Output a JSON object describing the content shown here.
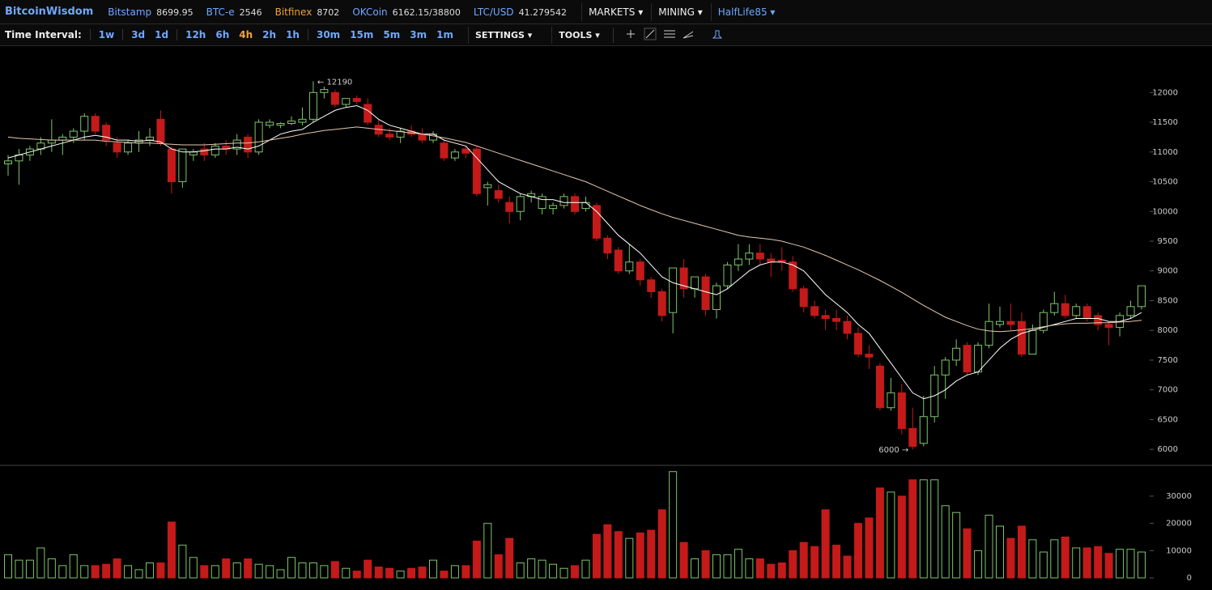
{
  "header": {
    "brand": "BitcoinWisdom",
    "tickers": [
      {
        "name": "Bitstamp",
        "value": "8699.95",
        "color": "#6fa8ff"
      },
      {
        "name": "BTC-e",
        "value": "2546",
        "color": "#6fa8ff"
      },
      {
        "name": "Bitfinex",
        "value": "8702",
        "color": "#f0a040"
      },
      {
        "name": "OKCoin",
        "value": "6162.15/38800",
        "color": "#6fa8ff"
      },
      {
        "name": "LTC/USD",
        "value": "41.279542",
        "color": "#6fa8ff"
      }
    ],
    "menus": [
      "MARKETS",
      "MINING",
      "HalfLife85"
    ]
  },
  "toolbar": {
    "label": "Time Interval:",
    "intervals": [
      [
        "1w"
      ],
      [
        "3d",
        "1d"
      ],
      [
        "12h",
        "6h",
        "4h",
        "2h",
        "1h"
      ],
      [
        "30m",
        "15m",
        "5m",
        "3m",
        "1m"
      ]
    ],
    "active_interval": "4h",
    "menus": [
      "SETTINGS",
      "TOOLS"
    ]
  },
  "chart_data": {
    "type": "candlestick",
    "up_color": "#7cc66a",
    "down_color": "#c41a1a",
    "ylim": [
      5730,
      12780
    ],
    "yticks": [
      6000,
      6500,
      7000,
      7500,
      8000,
      8500,
      9000,
      9500,
      10000,
      10500,
      11000,
      11500,
      12000
    ],
    "annotations": [
      {
        "text": "← 12190",
        "at": "high"
      },
      {
        "text": "6000 →",
        "at": "low"
      }
    ],
    "ohlc": [
      [
        10800,
        10950,
        10600,
        10850
      ],
      [
        10850,
        11050,
        10450,
        10950
      ],
      [
        10950,
        11100,
        10850,
        11050
      ],
      [
        11050,
        11250,
        10950,
        11150
      ],
      [
        11150,
        11550,
        11000,
        11200
      ],
      [
        11200,
        11300,
        10950,
        11250
      ],
      [
        11250,
        11400,
        11150,
        11350
      ],
      [
        11350,
        11650,
        11200,
        11600
      ],
      [
        11600,
        11650,
        11300,
        11350
      ],
      [
        11450,
        11500,
        11100,
        11200
      ],
      [
        11150,
        11250,
        10900,
        11000
      ],
      [
        11000,
        11200,
        10950,
        11150
      ],
      [
        11150,
        11350,
        11000,
        11200
      ],
      [
        11200,
        11400,
        11100,
        11250
      ],
      [
        11550,
        11700,
        11100,
        11150
      ],
      [
        11050,
        11100,
        10300,
        10500
      ],
      [
        10500,
        11050,
        10400,
        11050
      ],
      [
        10950,
        11050,
        10850,
        11000
      ],
      [
        11050,
        11150,
        10850,
        10950
      ],
      [
        10950,
        11150,
        10900,
        11100
      ],
      [
        11100,
        11200,
        10950,
        11050
      ],
      [
        11050,
        11300,
        10950,
        11200
      ],
      [
        11250,
        11300,
        10900,
        11000
      ],
      [
        11000,
        11550,
        10950,
        11500
      ],
      [
        11450,
        11550,
        11400,
        11500
      ],
      [
        11450,
        11500,
        11400,
        11480
      ],
      [
        11480,
        11600,
        11450,
        11520
      ],
      [
        11500,
        11750,
        11450,
        11550
      ],
      [
        11550,
        12190,
        11500,
        12000
      ],
      [
        12000,
        12100,
        11900,
        12050
      ],
      [
        12000,
        12050,
        11750,
        11800
      ],
      [
        11800,
        11900,
        11750,
        11900
      ],
      [
        11900,
        11950,
        11800,
        11850
      ],
      [
        11800,
        11900,
        11450,
        11500
      ],
      [
        11450,
        11550,
        11250,
        11300
      ],
      [
        11300,
        11400,
        11200,
        11250
      ],
      [
        11250,
        11400,
        11150,
        11350
      ],
      [
        11350,
        11450,
        11250,
        11300
      ],
      [
        11300,
        11400,
        11150,
        11200
      ],
      [
        11200,
        11350,
        11150,
        11300
      ],
      [
        11150,
        11200,
        10850,
        10900
      ],
      [
        10900,
        11050,
        10850,
        11000
      ],
      [
        11050,
        11100,
        10900,
        10980
      ],
      [
        11050,
        11100,
        10250,
        10300
      ],
      [
        10400,
        10500,
        10100,
        10450
      ],
      [
        10350,
        10450,
        10150,
        10220
      ],
      [
        10150,
        10250,
        9800,
        10000
      ],
      [
        10000,
        10300,
        9850,
        10250
      ],
      [
        10250,
        10350,
        10150,
        10300
      ],
      [
        10050,
        10300,
        9950,
        10250
      ],
      [
        10050,
        10150,
        9950,
        10100
      ],
      [
        10100,
        10300,
        10050,
        10250
      ],
      [
        10250,
        10300,
        9950,
        10000
      ],
      [
        10050,
        10250,
        10000,
        10150
      ],
      [
        10100,
        10150,
        9500,
        9550
      ],
      [
        9550,
        9600,
        9200,
        9300
      ],
      [
        9350,
        9400,
        8950,
        9000
      ],
      [
        9000,
        9450,
        8950,
        9150
      ],
      [
        9150,
        9200,
        8750,
        8850
      ],
      [
        8850,
        8900,
        8550,
        8650
      ],
      [
        8650,
        8700,
        8150,
        8250
      ],
      [
        8300,
        9050,
        7950,
        9050
      ],
      [
        9050,
        9200,
        8550,
        8700
      ],
      [
        8700,
        8900,
        8550,
        8900
      ],
      [
        8900,
        8950,
        8250,
        8350
      ],
      [
        8350,
        8800,
        8200,
        8750
      ],
      [
        8750,
        9150,
        8700,
        9100
      ],
      [
        9100,
        9450,
        9000,
        9200
      ],
      [
        9200,
        9450,
        9100,
        9300
      ],
      [
        9300,
        9450,
        9100,
        9200
      ],
      [
        9200,
        9300,
        8900,
        9150
      ],
      [
        9180,
        9400,
        9000,
        9150
      ],
      [
        9150,
        9250,
        8650,
        8700
      ],
      [
        8700,
        8750,
        8300,
        8400
      ],
      [
        8400,
        8500,
        8200,
        8250
      ],
      [
        8250,
        8350,
        8000,
        8200
      ],
      [
        8200,
        8350,
        8000,
        8150
      ],
      [
        8150,
        8250,
        7850,
        7950
      ],
      [
        7950,
        8050,
        7550,
        7600
      ],
      [
        7600,
        7750,
        7350,
        7550
      ],
      [
        7400,
        7450,
        6650,
        6700
      ],
      [
        6700,
        7200,
        6650,
        6950
      ],
      [
        6950,
        7100,
        6250,
        6350
      ],
      [
        6350,
        6700,
        6000,
        6050
      ],
      [
        6100,
        6900,
        6050,
        6550
      ],
      [
        6550,
        7400,
        6450,
        7250
      ],
      [
        7250,
        7550,
        6850,
        7500
      ],
      [
        7500,
        7850,
        7400,
        7700
      ],
      [
        7750,
        7800,
        7250,
        7300
      ],
      [
        7300,
        7800,
        7250,
        7750
      ],
      [
        7750,
        8450,
        7700,
        8150
      ],
      [
        8100,
        8400,
        8050,
        8150
      ],
      [
        8150,
        8450,
        8000,
        8100
      ],
      [
        8150,
        8300,
        7550,
        7600
      ],
      [
        7600,
        8100,
        7600,
        8000
      ],
      [
        8000,
        8350,
        7950,
        8300
      ],
      [
        8300,
        8650,
        8250,
        8450
      ],
      [
        8450,
        8600,
        8200,
        8250
      ],
      [
        8250,
        8450,
        8200,
        8400
      ],
      [
        8400,
        8450,
        8150,
        8200
      ],
      [
        8250,
        8300,
        8000,
        8100
      ],
      [
        8100,
        8150,
        7750,
        8050
      ],
      [
        8050,
        8300,
        7900,
        8250
      ],
      [
        8250,
        8500,
        8200,
        8400
      ],
      [
        8400,
        8750,
        8350,
        8750
      ]
    ],
    "moving_averages": [
      {
        "color": "#ffffff",
        "values": [
          10900,
          10950,
          11000,
          11050,
          11100,
          11150,
          11200,
          11250,
          11280,
          11250,
          11200,
          11200,
          11180,
          11200,
          11170,
          11050,
          11000,
          11000,
          11020,
          11050,
          11050,
          11080,
          11050,
          11100,
          11200,
          11300,
          11350,
          11380,
          11500,
          11600,
          11700,
          11750,
          11780,
          11700,
          11550,
          11450,
          11400,
          11350,
          11300,
          11300,
          11200,
          11150,
          11100,
          10900,
          10700,
          10500,
          10400,
          10300,
          10250,
          10200,
          10200,
          10150,
          10150,
          10150,
          10000,
          9800,
          9600,
          9450,
          9300,
          9100,
          8900,
          8800,
          8750,
          8700,
          8650,
          8600,
          8700,
          8850,
          9000,
          9100,
          9150,
          9150,
          9100,
          9000,
          8800,
          8600,
          8450,
          8300,
          8100,
          7950,
          7700,
          7450,
          7200,
          6950,
          6850,
          6900,
          7000,
          7150,
          7250,
          7300,
          7500,
          7700,
          7850,
          7950,
          8000,
          8050,
          8100,
          8150,
          8200,
          8200,
          8200,
          8150,
          8150,
          8200,
          8300
        ]
      },
      {
        "color": "#e6c8b0",
        "values": [
          11250,
          11230,
          11220,
          11210,
          11200,
          11200,
          11200,
          11200,
          11200,
          11180,
          11170,
          11160,
          11150,
          11150,
          11140,
          11130,
          11120,
          11120,
          11120,
          11130,
          11140,
          11150,
          11150,
          11170,
          11200,
          11230,
          11260,
          11300,
          11330,
          11360,
          11380,
          11400,
          11420,
          11400,
          11380,
          11360,
          11340,
          11320,
          11300,
          11270,
          11240,
          11200,
          11160,
          11100,
          11040,
          10980,
          10920,
          10860,
          10800,
          10740,
          10680,
          10620,
          10560,
          10500,
          10420,
          10340,
          10260,
          10180,
          10100,
          10030,
          9960,
          9900,
          9850,
          9800,
          9750,
          9700,
          9650,
          9600,
          9570,
          9550,
          9530,
          9500,
          9450,
          9400,
          9330,
          9260,
          9180,
          9100,
          9020,
          8930,
          8840,
          8740,
          8640,
          8530,
          8420,
          8320,
          8220,
          8150,
          8080,
          8020,
          7990,
          7980,
          7990,
          8010,
          8030,
          8060,
          8090,
          8110,
          8120,
          8120,
          8130,
          8130,
          8140,
          8150,
          8170
        ]
      }
    ],
    "volume": {
      "ylim": [
        -4450,
        40400
      ],
      "yticks": [
        0,
        10000,
        20000,
        30000
      ],
      "values": [
        8500,
        6500,
        6500,
        11000,
        7000,
        4500,
        8500,
        4500,
        4500,
        5000,
        7000,
        4500,
        3000,
        5500,
        5500,
        20500,
        12000,
        7500,
        4500,
        4500,
        7000,
        5500,
        7000,
        5000,
        4500,
        3000,
        7500,
        5500,
        5500,
        4500,
        6000,
        3500,
        2500,
        6500,
        4000,
        3500,
        2500,
        3500,
        4000,
        6500,
        2500,
        4500,
        4500,
        13500,
        20000,
        8500,
        14500,
        5500,
        7000,
        6500,
        5000,
        3500,
        4500,
        6500,
        16000,
        19500,
        17000,
        14500,
        16500,
        17500,
        25000,
        39000,
        13000,
        7000,
        10000,
        8500,
        8500,
        10500,
        7000,
        7000,
        5000,
        5500,
        10000,
        13000,
        11500,
        25000,
        12000,
        8000,
        20000,
        22000,
        33000,
        31500,
        30000,
        36000,
        36000,
        36000,
        26500,
        24000,
        18000,
        10000,
        23000,
        19000,
        14500,
        19000,
        14000,
        9500,
        14000,
        15000,
        11000,
        11000,
        11500,
        9000,
        10500,
        10500,
        9500
      ]
    }
  }
}
